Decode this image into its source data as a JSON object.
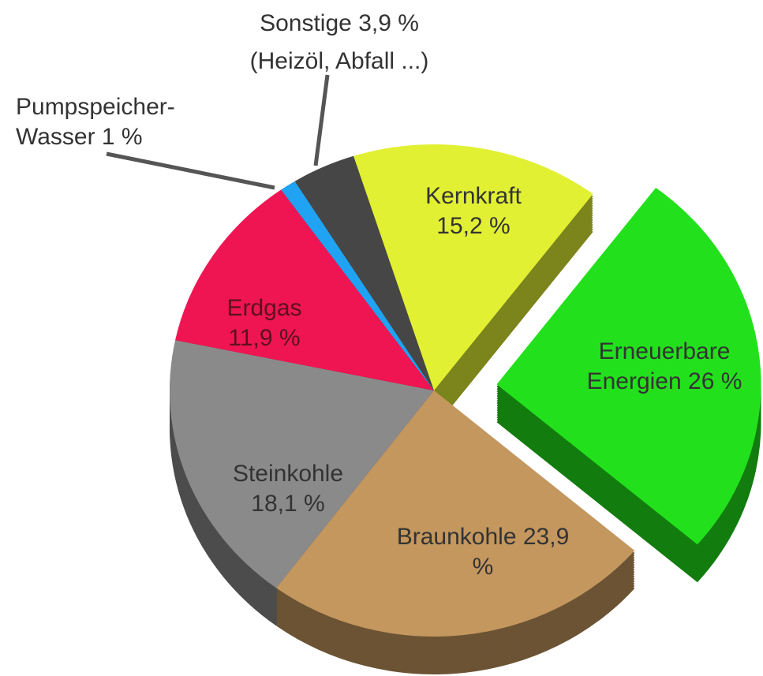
{
  "chart_data": {
    "type": "pie",
    "categories": [
      "Erneuerbare Energien",
      "Braunkohle",
      "Steinkohle",
      "Erdgas",
      "Pumpspeicher-Wasser",
      "Sonstige",
      "Kernkraft"
    ],
    "values": [
      26,
      23.9,
      18.1,
      11.9,
      1,
      3.9,
      15.2
    ],
    "value_labels": [
      "26 %",
      "23,9 %",
      "18,1 %",
      "11,9 %",
      "1 %",
      "3,9 %",
      "15,2 %"
    ],
    "colors": [
      "#22e11c",
      "#c3975e",
      "#8a8a8a",
      "#ef1552",
      "#1fa3f2",
      "#464646",
      "#e2f033"
    ],
    "annotation": "(Heizöl, Abfall ...)"
  }
}
